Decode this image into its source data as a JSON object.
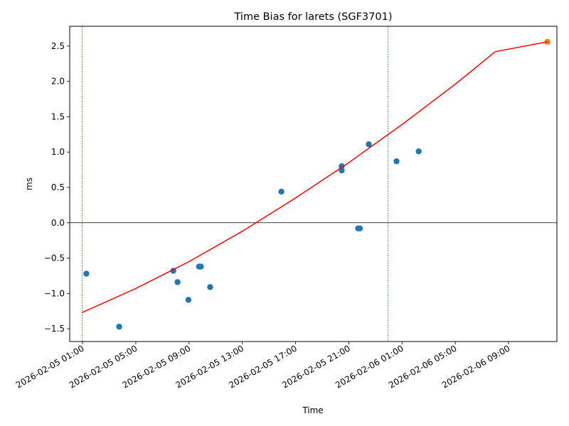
{
  "chart_data": {
    "type": "scatter",
    "title": "Time Bias for larets (SGF3701)",
    "xlabel": "Time",
    "ylabel": "ms",
    "x_is_datetime": true,
    "xlim": [
      "2026-02-05 00:02",
      "2026-02-06 12:38"
    ],
    "ylim": [
      -1.68,
      2.78
    ],
    "yticks": [
      -1.5,
      -1.0,
      -0.5,
      0.0,
      0.5,
      1.0,
      1.5,
      2.0,
      2.5
    ],
    "ytick_labels": [
      "−1.5",
      "−1.0",
      "−0.5",
      "0.0",
      "0.5",
      "1.0",
      "1.5",
      "2.0",
      "2.5"
    ],
    "xticks": [
      "2026-02-05 01:00",
      "2026-02-05 05:00",
      "2026-02-05 09:00",
      "2026-02-05 13:00",
      "2026-02-05 17:00",
      "2026-02-05 21:00",
      "2026-02-06 01:00",
      "2026-02-06 05:00",
      "2026-02-06 09:00"
    ],
    "xtick_labels": [
      "2026-02-05 01:00",
      "2026-02-05 05:00",
      "2026-02-05 09:00",
      "2026-02-05 13:00",
      "2026-02-05 17:00",
      "2026-02-05 21:00",
      "2026-02-06 01:00",
      "2026-02-06 05:00",
      "2026-02-06 09:00"
    ],
    "zero_line": 0.0,
    "vlines": [
      "2026-02-05 00:58",
      "2026-02-05 23:57"
    ],
    "series": [
      {
        "kind": "scatter",
        "color": "#1f77b4",
        "points": [
          {
            "x": "2026-02-05 01:17",
            "y": -0.72
          },
          {
            "x": "2026-02-05 03:45",
            "y": -1.47
          },
          {
            "x": "2026-02-05 07:49",
            "y": -0.68
          },
          {
            "x": "2026-02-05 08:08",
            "y": -0.84
          },
          {
            "x": "2026-02-05 08:57",
            "y": -1.09
          },
          {
            "x": "2026-02-05 09:45",
            "y": -0.62
          },
          {
            "x": "2026-02-05 09:53",
            "y": -0.62
          },
          {
            "x": "2026-02-05 10:35",
            "y": -0.91
          },
          {
            "x": "2026-02-05 15:56",
            "y": 0.44
          },
          {
            "x": "2026-02-05 20:28",
            "y": 0.8
          },
          {
            "x": "2026-02-05 20:28",
            "y": 0.74
          },
          {
            "x": "2026-02-05 21:42",
            "y": -0.08
          },
          {
            "x": "2026-02-05 21:50",
            "y": -0.08
          },
          {
            "x": "2026-02-05 22:30",
            "y": 1.11
          },
          {
            "x": "2026-02-06 00:35",
            "y": 0.87
          },
          {
            "x": "2026-02-06 02:15",
            "y": 1.01
          }
        ]
      },
      {
        "kind": "scatter",
        "color": "#ff7f0e",
        "points": [
          {
            "x": "2026-02-06 11:55",
            "y": 2.56
          }
        ]
      },
      {
        "kind": "line",
        "color": "#ff0000",
        "points": [
          {
            "x": "2026-02-05 00:58",
            "y": -1.27
          },
          {
            "x": "2026-02-05 05:00",
            "y": -0.93
          },
          {
            "x": "2026-02-05 09:00",
            "y": -0.55
          },
          {
            "x": "2026-02-05 13:00",
            "y": -0.12
          },
          {
            "x": "2026-02-05 17:00",
            "y": 0.35
          },
          {
            "x": "2026-02-05 21:00",
            "y": 0.85
          },
          {
            "x": "2026-02-06 01:00",
            "y": 1.39
          },
          {
            "x": "2026-02-06 05:00",
            "y": 1.96
          },
          {
            "x": "2026-02-06 08:00",
            "y": 2.42
          },
          {
            "x": "2026-02-06 11:55",
            "y": 2.56
          }
        ]
      }
    ],
    "grid": false
  }
}
